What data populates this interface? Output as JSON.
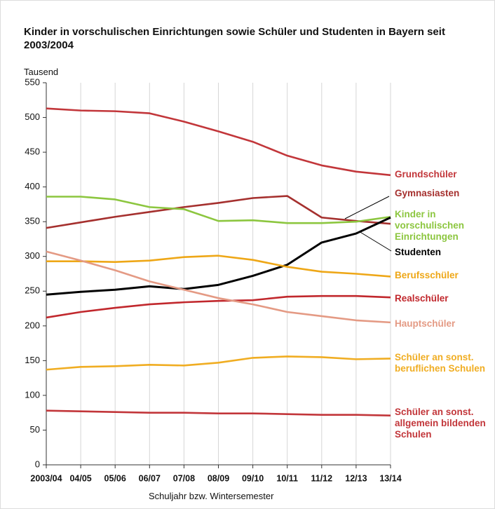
{
  "chart_data": {
    "type": "line",
    "title": "Kinder in vorschulischen Einrichtungen sowie Schüler und Studenten in Bayern seit 2003/2004",
    "y_label": "Tausend",
    "x_label": "Schuljahr bzw. Wintersemester",
    "categories": [
      "2003/04",
      "04/05",
      "05/06",
      "06/07",
      "07/08",
      "08/09",
      "09/10",
      "10/11",
      "11/12",
      "12/13",
      "13/14"
    ],
    "ylim": [
      0,
      550
    ],
    "yticks": [
      0,
      50,
      100,
      150,
      200,
      250,
      300,
      350,
      400,
      450,
      500,
      550
    ],
    "series": [
      {
        "name": "Grundschüler",
        "color": "#c2363a",
        "values": [
          513,
          510,
          509,
          506,
          494,
          480,
          465,
          445,
          431,
          422,
          417
        ]
      },
      {
        "name": "Gymnasiasten",
        "color": "#a5302e",
        "values": [
          341,
          349,
          357,
          364,
          371,
          377,
          384,
          387,
          356,
          351,
          347
        ]
      },
      {
        "name": "Kinder in vorschulischen Einrichtungen",
        "color": "#8cc63f",
        "values": [
          386,
          386,
          382,
          371,
          368,
          351,
          352,
          348,
          348,
          350,
          357
        ]
      },
      {
        "name": "Studenten",
        "color": "#000000",
        "values": [
          245,
          249,
          252,
          257,
          253,
          259,
          272,
          288,
          320,
          333,
          356
        ]
      },
      {
        "name": "Berufsschüler",
        "color": "#eea717",
        "values": [
          293,
          293,
          292,
          294,
          299,
          301,
          295,
          285,
          278,
          275,
          271
        ]
      },
      {
        "name": "Realschüler",
        "color": "#c1282d",
        "values": [
          212,
          220,
          226,
          231,
          234,
          236,
          237,
          242,
          243,
          243,
          241
        ]
      },
      {
        "name": "Hauptschüler",
        "color": "#e49a84",
        "values": [
          307,
          294,
          280,
          264,
          252,
          240,
          231,
          220,
          214,
          208,
          205
        ]
      },
      {
        "name": "Schüler an sonst. beruflichen Schulen",
        "color": "#f0ad22",
        "values": [
          137,
          141,
          142,
          144,
          143,
          147,
          154,
          156,
          155,
          152,
          153
        ]
      },
      {
        "name": "Schüler an sonst. allgemein bildenden Schulen",
        "color": "#c2363a",
        "values": [
          78,
          77,
          76,
          75,
          75,
          74,
          74,
          73,
          72,
          72,
          71
        ]
      }
    ]
  }
}
